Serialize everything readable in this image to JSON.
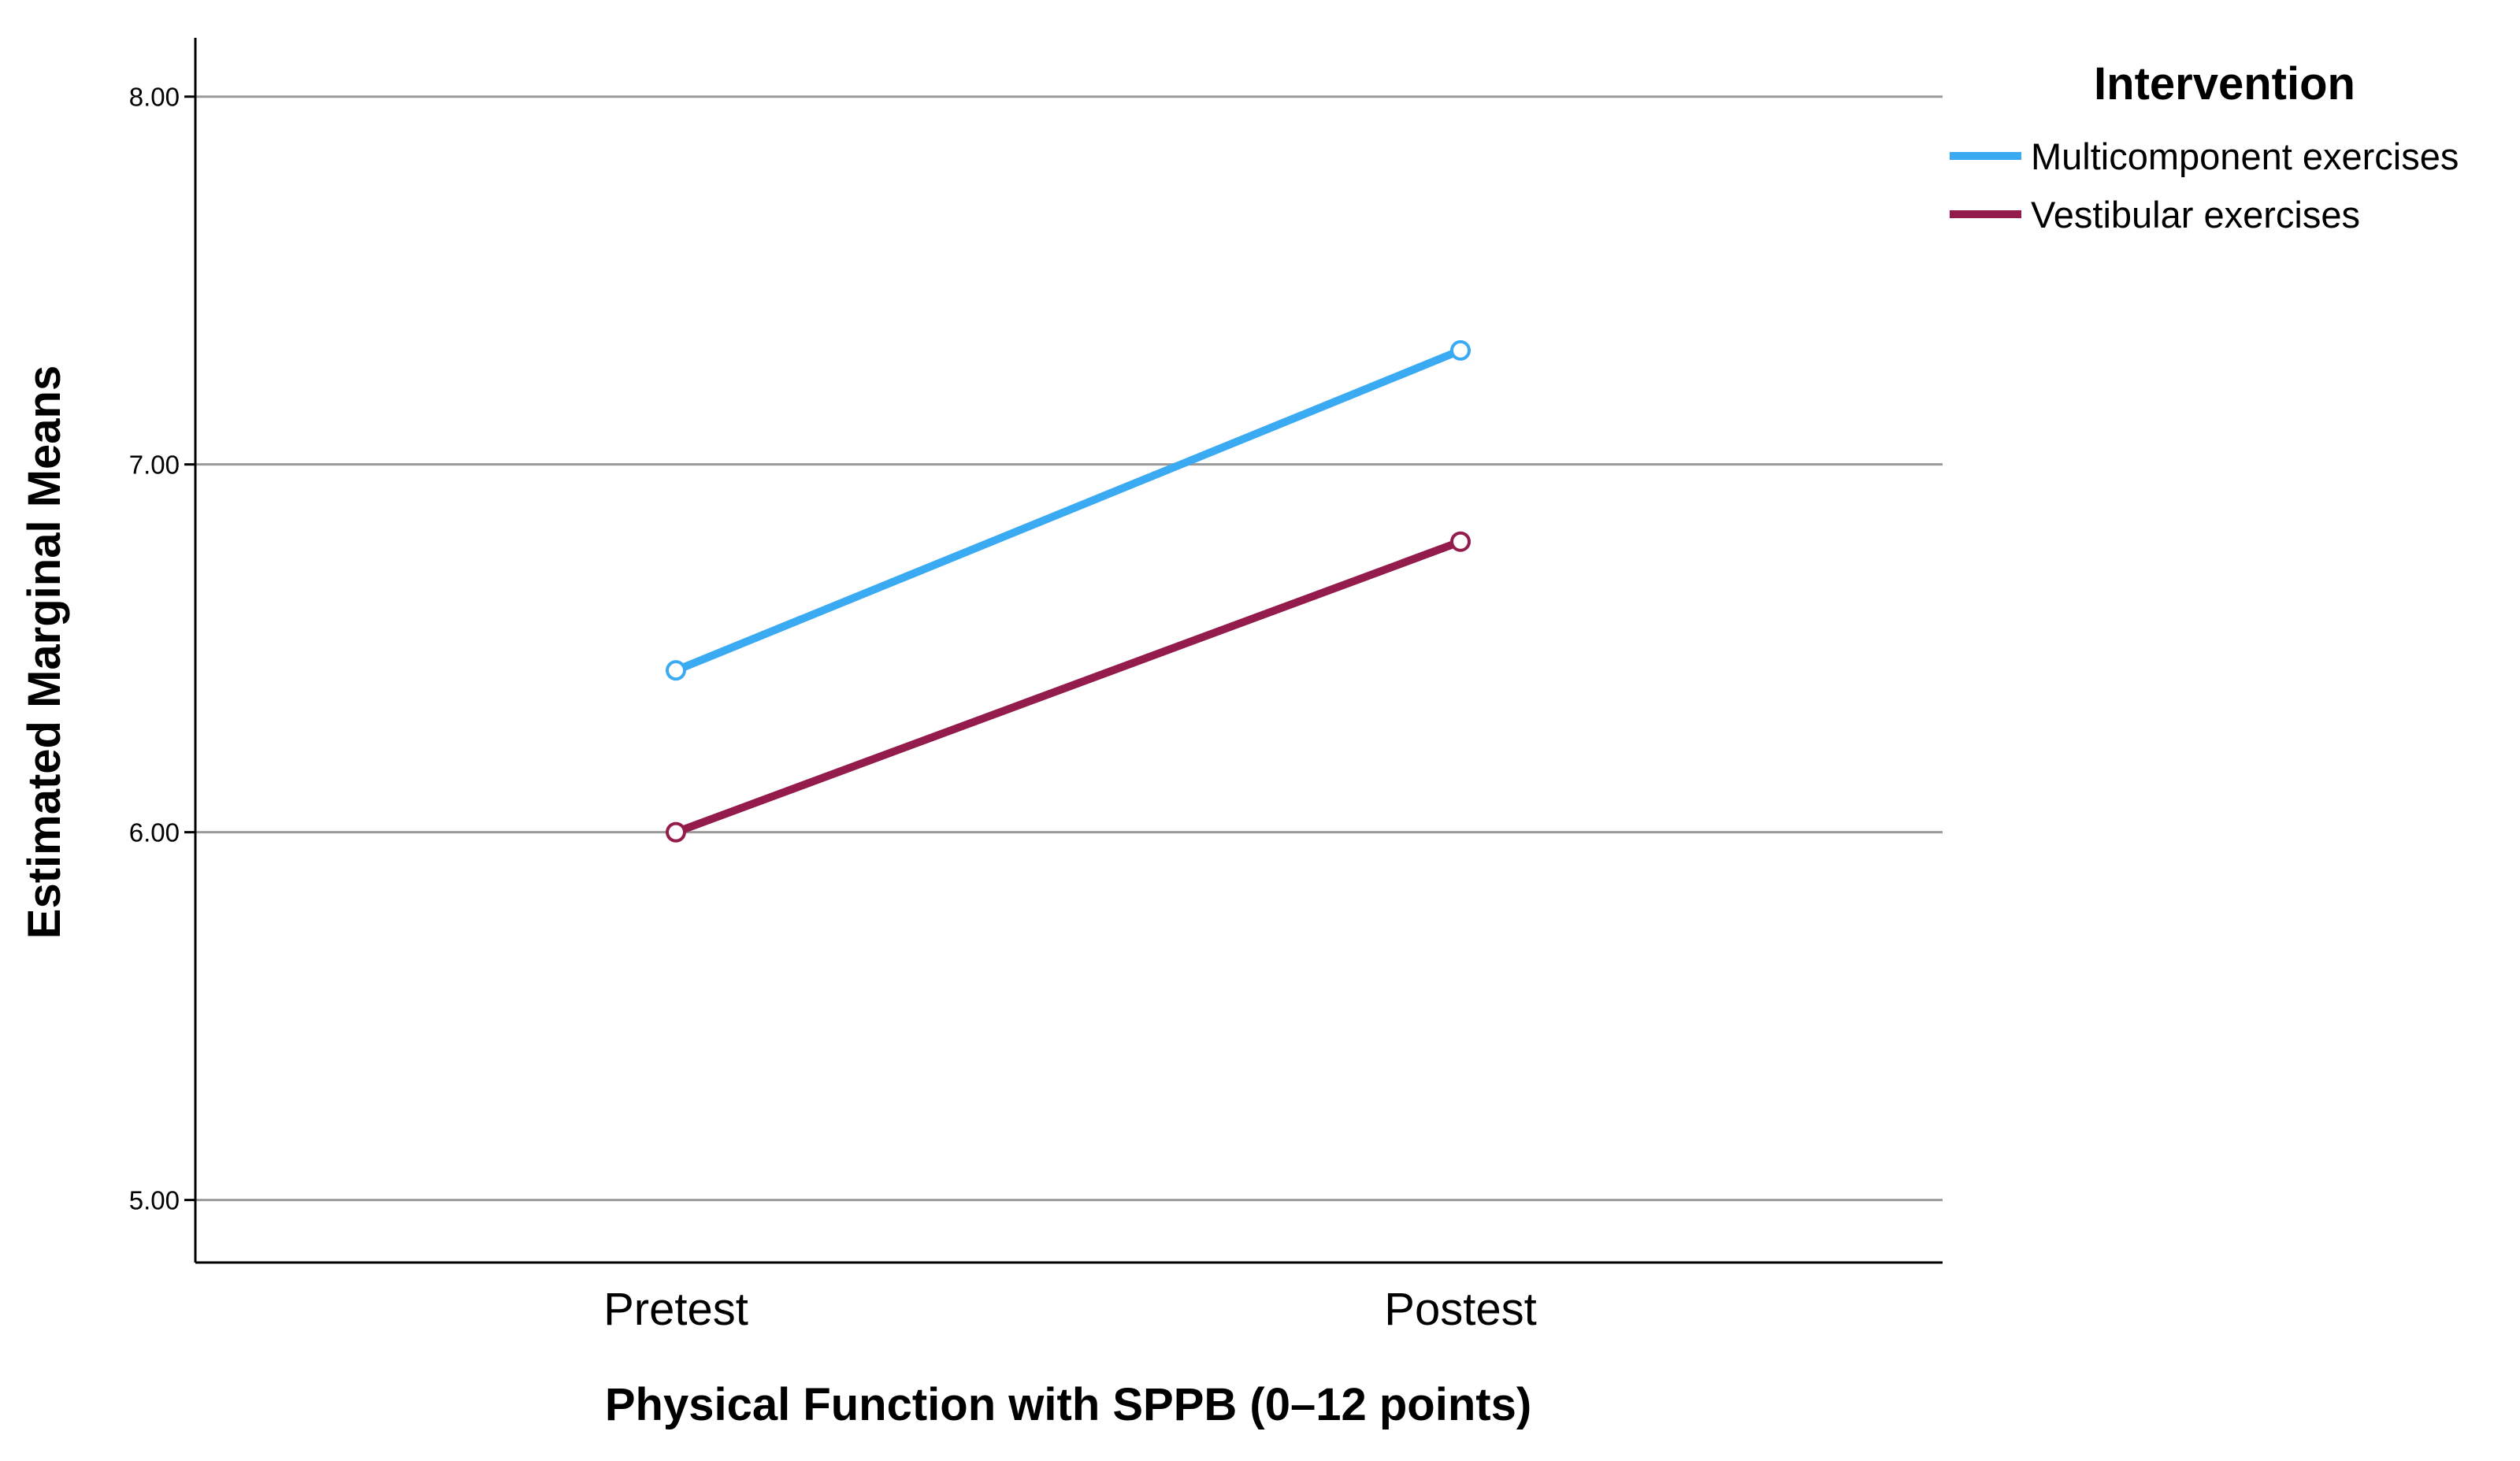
{
  "chart_data": {
    "type": "line",
    "title": "",
    "xlabel": "Physical Function with SPPB (0–12 points)",
    "ylabel": "Estimated Marginal Means",
    "categories": [
      "Pretest",
      "Postest"
    ],
    "ylim": [
      4.83,
      8.16
    ],
    "yticks": [
      5.0,
      6.0,
      7.0,
      8.0
    ],
    "ytick_labels": [
      "5.00",
      "6.00",
      "7.00",
      "8.00"
    ],
    "grid": true,
    "legend": {
      "title": "Intervention",
      "position": "top-right"
    },
    "series": [
      {
        "name": "Multicomponent exercises",
        "color": "#3aaaf3",
        "values": [
          6.44,
          7.31
        ]
      },
      {
        "name": "Vestibular exercises",
        "color": "#941c4c",
        "values": [
          6.0,
          6.79
        ]
      }
    ]
  }
}
